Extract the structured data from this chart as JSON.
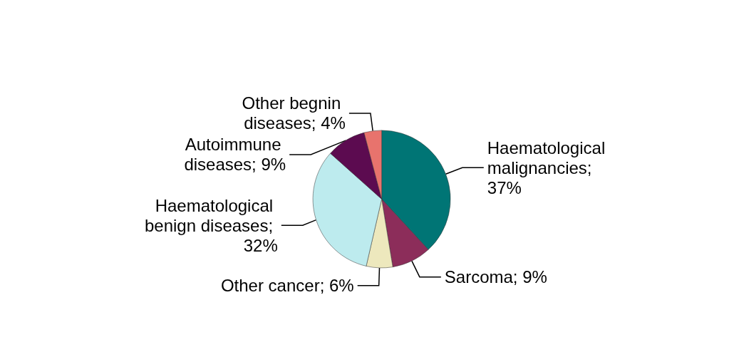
{
  "chart_data": {
    "type": "pie",
    "categories": [
      "Haematological malignancies; 37%",
      "Sarcoma; 9%",
      "Other cancer; 6%",
      "Haematological benign diseases; 32%",
      "Autoimmune diseases; 9%",
      "Other begnin diseases; 4%"
    ],
    "values": [
      37,
      9,
      6,
      32,
      9,
      4
    ],
    "colors": [
      "#007575",
      "#8c2d5a",
      "#ede8bd",
      "#bdebee",
      "#5c0b50",
      "#e8736d"
    ],
    "legend": false
  }
}
